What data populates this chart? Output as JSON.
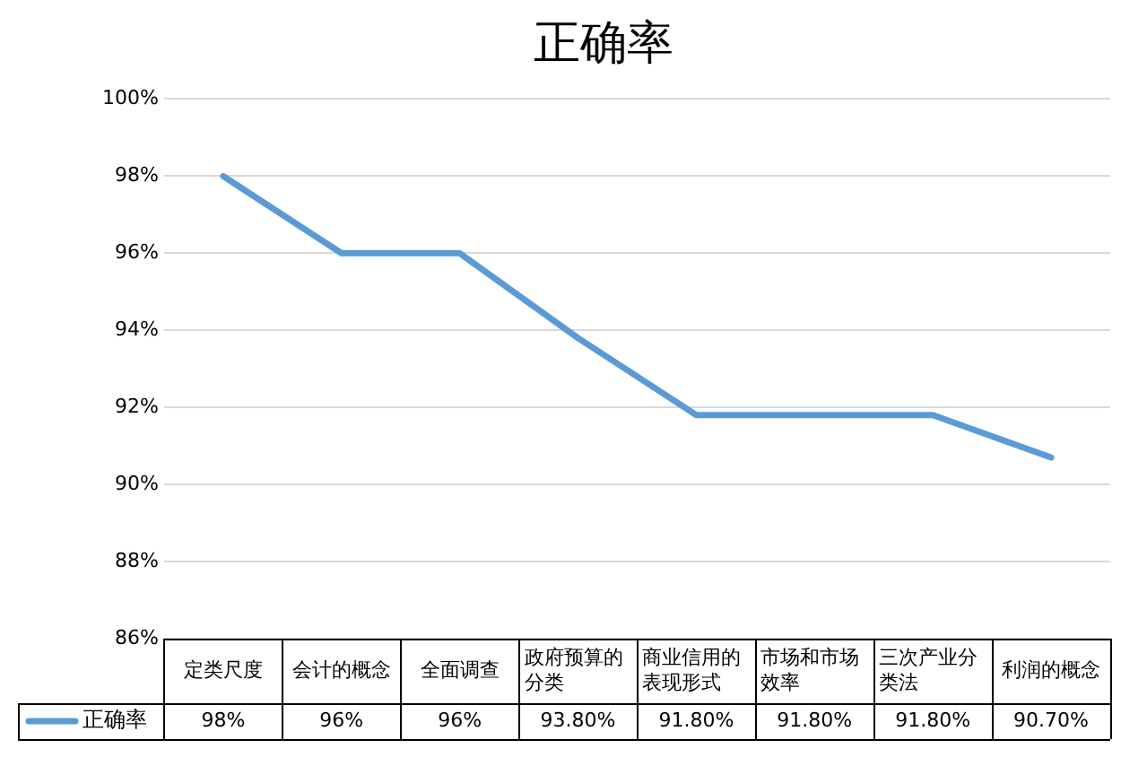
{
  "chart_data": {
    "type": "line",
    "title": "正确率",
    "categories": [
      "定类尺度",
      "会计的概念",
      "全面调查",
      "政府预算的分类",
      "商业信用的表现形式",
      "市场和市场效率",
      "三次产业分类法",
      "利润的概念"
    ],
    "series": [
      {
        "name": "正确率",
        "color": "#5b9bd5",
        "values": [
          98,
          96,
          96,
          93.8,
          91.8,
          91.8,
          91.8,
          90.7
        ],
        "value_labels": [
          "98%",
          "96%",
          "96%",
          "93.80%",
          "91.80%",
          "91.80%",
          "91.80%",
          "90.70%"
        ]
      }
    ],
    "ylim": [
      86,
      100
    ],
    "yticks": [
      {
        "value": 86,
        "label": "86%"
      },
      {
        "value": 88,
        "label": "88%"
      },
      {
        "value": 90,
        "label": "90%"
      },
      {
        "value": 92,
        "label": "92%"
      },
      {
        "value": 94,
        "label": "94%"
      },
      {
        "value": 96,
        "label": "96%"
      },
      {
        "value": 98,
        "label": "98%"
      },
      {
        "value": 100,
        "label": "100%"
      }
    ],
    "grid": "y",
    "legend": "bottom",
    "marker": "none",
    "line_style": "solid"
  }
}
